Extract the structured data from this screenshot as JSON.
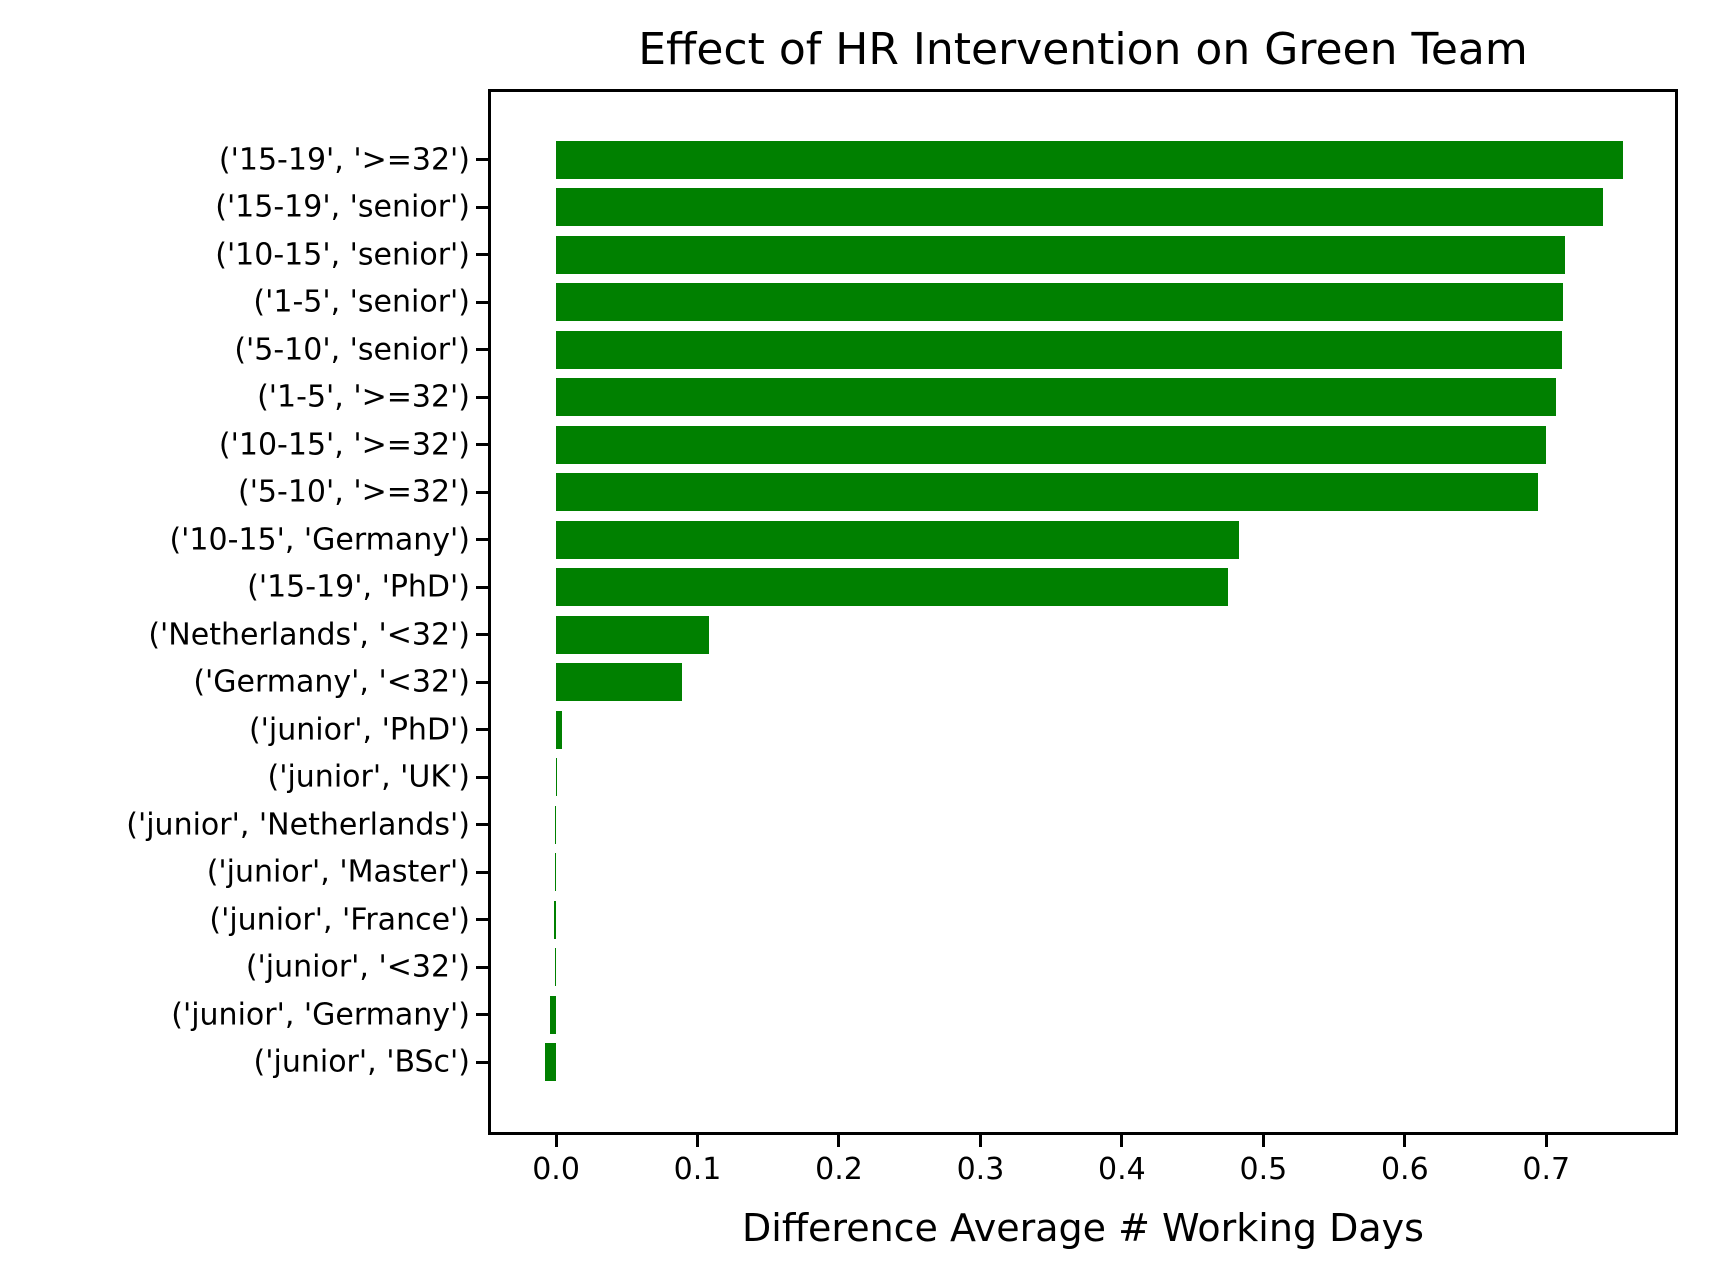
{
  "chart_data": {
    "type": "bar",
    "orientation": "horizontal",
    "title": "Effect of HR Intervention on Green Team",
    "xlabel": "Difference Average # Working Days",
    "ylabel": "",
    "categories": [
      "('15-19', '>=32')",
      "('15-19', 'senior')",
      "('10-15', 'senior')",
      "('1-5', 'senior')",
      "('5-10', 'senior')",
      "('1-5', '>=32')",
      "('10-15', '>=32')",
      "('5-10', '>=32')",
      "('10-15', 'Germany')",
      "('15-19', 'PhD')",
      "('Netherlands', '<32')",
      "('Germany', '<32')",
      "('junior', 'PhD')",
      "('junior', 'UK')",
      "('junior', 'Netherlands')",
      "('junior', 'Master')",
      "('junior', 'France')",
      "('junior', '<32')",
      "('junior', 'Germany')",
      "('junior', 'BSc')"
    ],
    "values": [
      0.754,
      0.74,
      0.713,
      0.712,
      0.711,
      0.707,
      0.7,
      0.694,
      0.483,
      0.475,
      0.108,
      0.089,
      0.004,
      0.0002,
      -0.001,
      -0.001,
      -0.0015,
      -0.001,
      -0.0046,
      -0.008
    ],
    "bar_color": "#008000",
    "text_color": "#000000",
    "background_color": "#ffffff",
    "xlim": [
      -0.046,
      0.791
    ],
    "xticks": [
      0.0,
      0.1,
      0.2,
      0.3,
      0.4,
      0.5,
      0.6,
      0.7
    ],
    "xtick_labels": [
      "0.0",
      "0.1",
      "0.2",
      "0.3",
      "0.4",
      "0.5",
      "0.6",
      "0.7"
    ],
    "grid": false,
    "legend": null
  }
}
